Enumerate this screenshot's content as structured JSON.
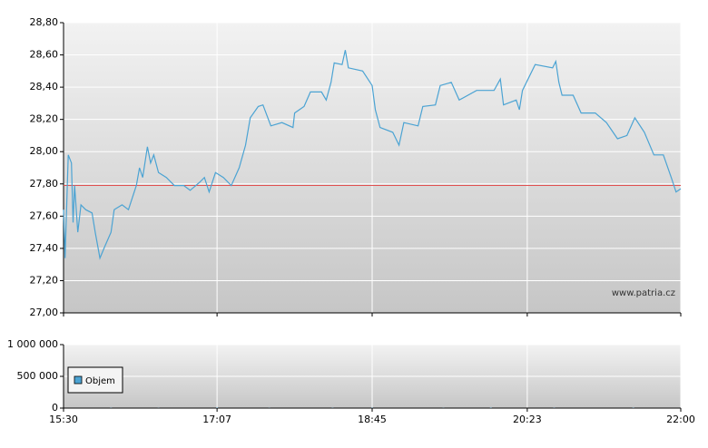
{
  "chart_data": [
    {
      "type": "line",
      "annotation": "www.patria.cz",
      "color": "#4ba3d3",
      "reference_line": 27.79,
      "reference_color": "#e05050",
      "x": [
        "15:30",
        "15:31",
        "15:33",
        "15:35",
        "15:36",
        "15:37",
        "15:39",
        "15:41",
        "15:44",
        "15:48",
        "15:50",
        "15:53",
        "15:56",
        "16:00",
        "16:02",
        "16:07",
        "16:11",
        "16:16",
        "16:18",
        "16:20",
        "16:23",
        "16:25",
        "16:27",
        "16:30",
        "16:35",
        "16:40",
        "16:46",
        "16:50",
        "16:56",
        "16:59",
        "17:02",
        "17:06",
        "17:11",
        "17:16",
        "17:21",
        "17:25",
        "17:28",
        "17:33",
        "17:36",
        "17:41",
        "17:48",
        "17:55",
        "17:56",
        "18:02",
        "18:06",
        "18:13",
        "18:16",
        "18:19",
        "18:21",
        "18:26",
        "18:28",
        "18:30",
        "18:39",
        "18:45",
        "18:47",
        "18:50",
        "18:58",
        "19:02",
        "19:05",
        "19:14",
        "19:17",
        "19:25",
        "19:28",
        "19:35",
        "19:40",
        "19:51",
        "20:02",
        "20:06",
        "20:08",
        "20:16",
        "20:18",
        "20:20",
        "20:28",
        "20:39",
        "20:41",
        "20:43",
        "20:45",
        "20:52",
        "20:57",
        "21:06",
        "21:13",
        "21:20",
        "21:26",
        "21:31",
        "21:37",
        "21:43",
        "21:49",
        "21:54",
        "21:57",
        "22:00"
      ],
      "values": [
        27.64,
        27.34,
        27.98,
        27.93,
        27.56,
        27.79,
        27.5,
        27.67,
        27.64,
        27.62,
        27.5,
        27.34,
        27.41,
        27.5,
        27.64,
        27.67,
        27.64,
        27.79,
        27.9,
        27.84,
        28.03,
        27.93,
        27.98,
        27.87,
        27.84,
        27.79,
        27.79,
        27.76,
        27.81,
        27.84,
        27.75,
        27.87,
        27.84,
        27.79,
        27.9,
        28.04,
        28.21,
        28.28,
        28.29,
        28.16,
        28.18,
        28.15,
        28.24,
        28.28,
        28.37,
        28.37,
        28.32,
        28.43,
        28.55,
        28.54,
        28.63,
        28.52,
        28.5,
        28.41,
        28.26,
        28.15,
        28.12,
        28.04,
        28.18,
        28.16,
        28.28,
        28.29,
        28.41,
        28.43,
        28.32,
        28.38,
        28.38,
        28.45,
        28.29,
        28.32,
        28.26,
        28.38,
        28.54,
        28.52,
        28.56,
        28.43,
        28.35,
        28.35,
        28.24,
        28.24,
        28.18,
        28.08,
        28.1,
        28.21,
        28.12,
        27.98,
        27.98,
        27.84,
        27.75,
        27.77
      ],
      "xlim": [
        "15:30",
        "22:00"
      ],
      "xticks": [
        "15:30",
        "17:07",
        "18:45",
        "20:23",
        "22:00"
      ],
      "ylim": [
        27.0,
        28.8
      ],
      "yticks": [
        {
          "value": 27.0,
          "label": "27,00"
        },
        {
          "value": 27.2,
          "label": "27,20"
        },
        {
          "value": 27.4,
          "label": "27,40"
        },
        {
          "value": 27.6,
          "label": "27,60"
        },
        {
          "value": 27.8,
          "label": "27,80"
        },
        {
          "value": 28.0,
          "label": "28,00"
        },
        {
          "value": 28.2,
          "label": "28,20"
        },
        {
          "value": 28.4,
          "label": "28,40"
        },
        {
          "value": 28.6,
          "label": "28,60"
        },
        {
          "value": 28.8,
          "label": "28,80"
        }
      ],
      "grid": true
    },
    {
      "type": "bar",
      "legend": "upper left",
      "x": [
        "16:00",
        "16:30",
        "17:07",
        "17:40",
        "18:20",
        "18:45",
        "19:30",
        "20:00",
        "20:40",
        "21:30"
      ],
      "series": [
        {
          "name": "Objem",
          "color": "#4ba3d3",
          "values": [
            3000,
            2000,
            6000,
            2000,
            3000,
            4000,
            2000,
            5000,
            3000,
            4000
          ]
        }
      ],
      "xlim": [
        "15:30",
        "22:00"
      ],
      "xticks": [
        "15:30",
        "17:07",
        "18:45",
        "20:23",
        "22:00"
      ],
      "ylim": [
        0,
        1000000
      ],
      "yticks": [
        0,
        {
          "value": 500000,
          "label": "500 000"
        },
        {
          "value": 1000000,
          "label": "1 000 000"
        }
      ],
      "grid": true
    }
  ]
}
